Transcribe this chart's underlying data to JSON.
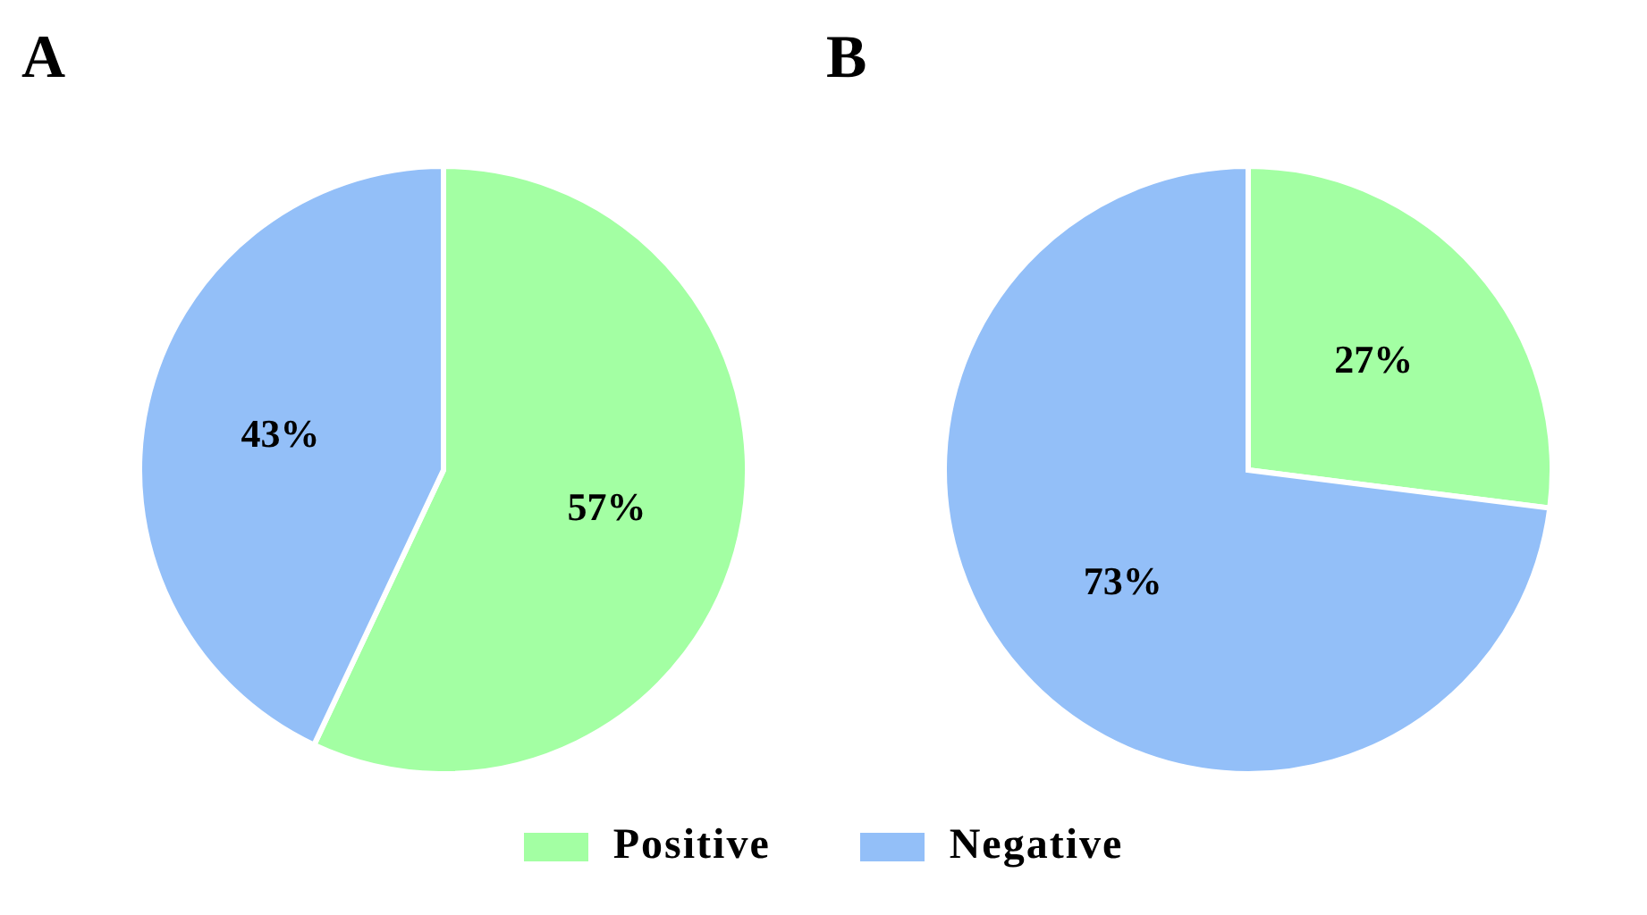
{
  "chart_data": [
    {
      "type": "pie",
      "title": "A",
      "categories": [
        null,
        null
      ],
      "values": [
        57,
        43
      ],
      "colors": [
        "#a3ffa3",
        "#93bff8"
      ],
      "value_labels": [
        "57%",
        "43%"
      ]
    },
    {
      "type": "pie",
      "title": "B",
      "categories": [
        "Positive",
        "Negative"
      ],
      "values": [
        27,
        73
      ],
      "colors": [
        "#a3ffa3",
        "#93bff8"
      ],
      "value_labels": [
        "27%",
        "73%"
      ],
      "legend": "bottom"
    }
  ]
}
